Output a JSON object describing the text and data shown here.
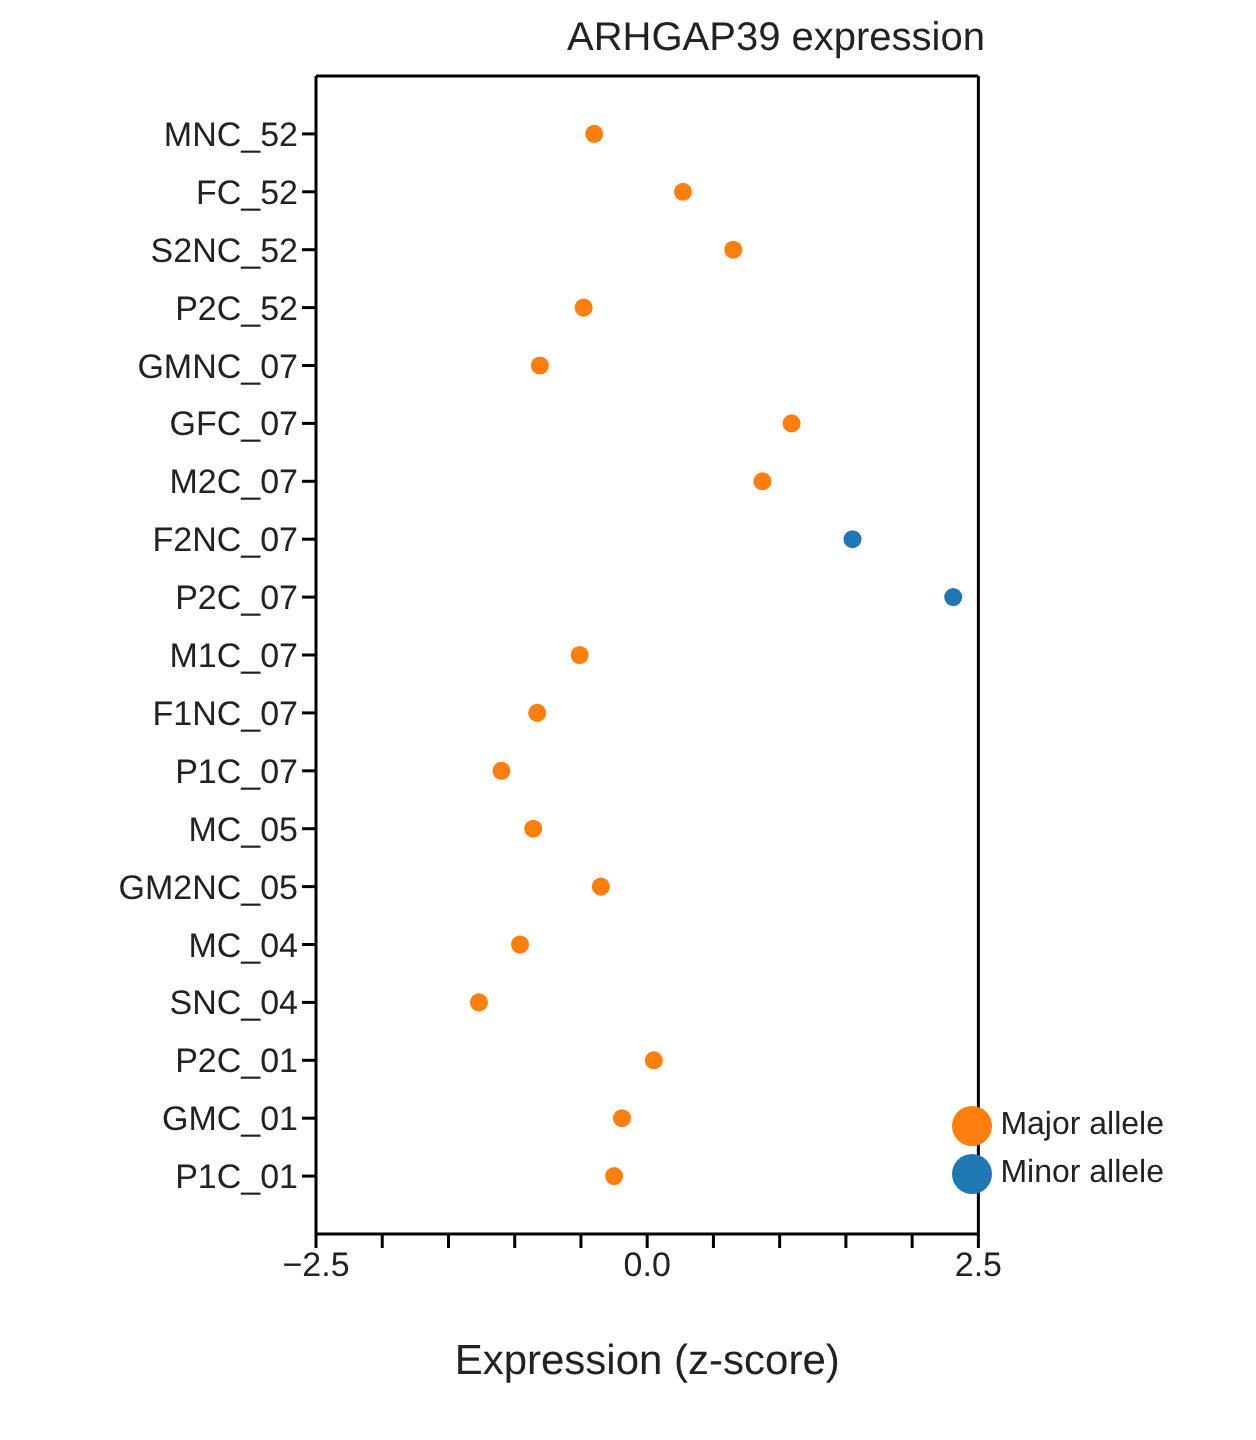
{
  "chart_data": {
    "type": "scatter",
    "orientation": "horizontal",
    "title": "ARHGAP39 expression",
    "xlabel": "Expression (z-score)",
    "categories": [
      "MNC_52",
      "FC_52",
      "S2NC_52",
      "P2C_52",
      "GMNC_07",
      "GFC_07",
      "M2C_07",
      "F2NC_07",
      "P2C_07",
      "M1C_07",
      "F1NC_07",
      "P1C_07",
      "MC_05",
      "GM2NC_05",
      "MC_04",
      "SNC_04",
      "P2C_01",
      "GMC_01",
      "P1C_01"
    ],
    "series": [
      {
        "name": "Minor allele",
        "color": "#1f77b4",
        "values": [
          null,
          null,
          null,
          null,
          null,
          null,
          null,
          1.55,
          2.31,
          null,
          null,
          null,
          null,
          null,
          null,
          null,
          null,
          null,
          null
        ]
      },
      {
        "name": "Major allele",
        "color": "#ff7f0e",
        "values": [
          -0.4,
          0.27,
          0.65,
          -0.48,
          -0.81,
          1.09,
          0.87,
          null,
          null,
          -0.51,
          -0.83,
          -1.1,
          -0.86,
          -0.35,
          -0.96,
          -1.27,
          0.05,
          -0.19,
          -0.25
        ]
      }
    ],
    "xlim": [
      -2.5,
      2.5
    ],
    "xticks": [
      -2.5,
      {
        "value": -2,
        "label": null
      },
      {
        "value": -1.5,
        "label": null
      },
      {
        "value": -1,
        "label": null
      },
      {
        "value": -0.5,
        "label": null
      },
      {
        "value": 0,
        "label": "0.0"
      },
      {
        "value": 0.5,
        "label": null
      },
      {
        "value": 1,
        "label": null
      },
      {
        "value": 1.5,
        "label": null
      },
      {
        "value": 2,
        "label": null
      },
      2.5
    ],
    "grid": false,
    "legend": "bottom right",
    "marker": "circle"
  }
}
